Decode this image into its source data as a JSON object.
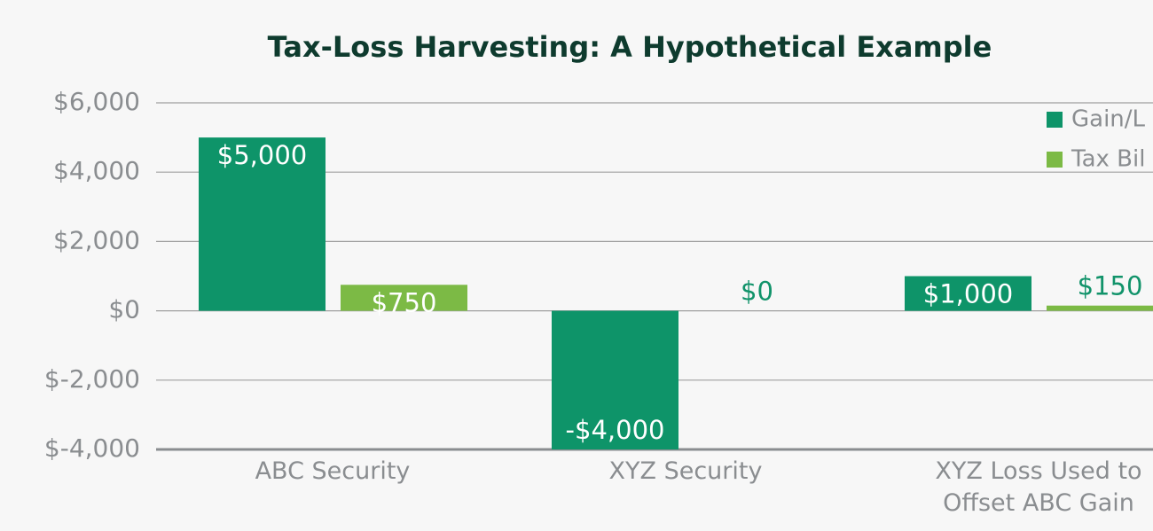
{
  "chart_data": {
    "type": "bar",
    "title": "Tax-Loss Harvesting: A Hypothetical Example",
    "categories": [
      "ABC Security",
      "XYZ Security",
      "XYZ Loss Used to Offset ABC Gain"
    ],
    "series": [
      {
        "name": "Gain/L",
        "color": "#0e9469",
        "values": [
          5000,
          -4000,
          1000
        ],
        "value_labels": [
          "$5,000",
          "-$4,000",
          "$1,000"
        ]
      },
      {
        "name": "Tax Bil",
        "color": "#7cba45",
        "values": [
          750,
          0,
          150
        ],
        "value_labels": [
          "$750",
          "$0",
          "$150"
        ]
      }
    ],
    "ylim": [
      -4000,
      6000
    ],
    "yticks": [
      {
        "value": -4000,
        "label": "$-4,000"
      },
      {
        "value": -2000,
        "label": "$-2,000"
      },
      {
        "value": 0,
        "label": "$0"
      },
      {
        "value": 2000,
        "label": "$2,000"
      },
      {
        "value": 4000,
        "label": "$4,000"
      },
      {
        "value": 6000,
        "label": "$6,000"
      }
    ],
    "grid": true,
    "legend": "top-right"
  }
}
